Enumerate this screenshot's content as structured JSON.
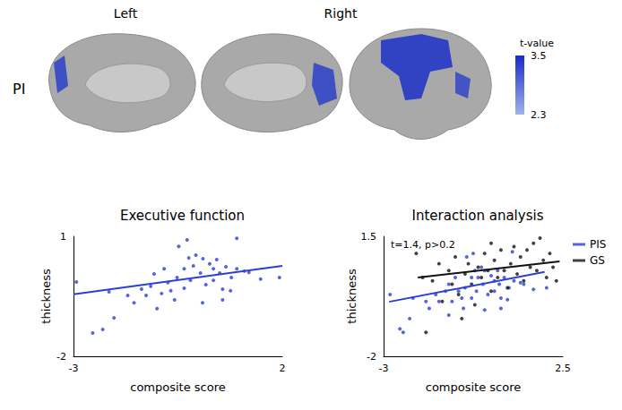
{
  "brain_map": {
    "row_label": "PI",
    "hemispheres": [
      "Left",
      "Right"
    ],
    "colorbar": {
      "title": "t-value",
      "range": [
        2.3,
        3.5
      ],
      "ticks": [
        2.3,
        3.5
      ]
    }
  },
  "chart_data": [
    {
      "type": "scatter",
      "title": "Executive function",
      "x_label": "composite score",
      "y_label": "thickness",
      "xlim": [
        -3,
        2
      ],
      "xticks": [
        -3,
        2
      ],
      "ylim": [
        -2,
        1
      ],
      "yticks": [
        -2,
        1
      ],
      "grid": false,
      "color": "#2b3fd6",
      "x": [
        -2.93,
        -2.3,
        -2.54,
        -2.03,
        -2.15,
        -1.7,
        -1.55,
        -1.37,
        -1.26,
        -1.15,
        -1.0,
        -1.07,
        -0.89,
        -0.83,
        -0.74,
        -0.67,
        -0.58,
        -0.52,
        -0.48,
        -0.35,
        -0.28,
        -0.35,
        -0.24,
        -0.2,
        -0.13,
        -0.07,
        0.04,
        0.1,
        0.17,
        0.26,
        0.35,
        0.43,
        0.35,
        0.5,
        0.57,
        0.65,
        0.78,
        0.91,
        1.09,
        0.91,
        1.2,
        1.48,
        0.76,
        1.93,
        0.57,
        0.09
      ],
      "values": [
        -0.14,
        -1.33,
        -1.42,
        -1.04,
        -0.39,
        -0.48,
        -0.66,
        -0.32,
        -0.48,
        -0.25,
        -0.81,
        0.06,
        -0.43,
        0.19,
        -0.16,
        -0.36,
        -0.59,
        -0.03,
        0.75,
        0.19,
        0.91,
        -0.3,
        0.46,
        -0.1,
        0.26,
        0.53,
        0.08,
        0.44,
        -0.21,
        0.31,
        0.19,
        0.42,
        -0.1,
        0.08,
        -0.32,
        0.24,
        -0.03,
        0.19,
        0.13,
        0.95,
        0.1,
        -0.07,
        -0.36,
        -0.03,
        -0.59,
        -0.66
      ],
      "fit": {
        "x": [
          -3,
          2
        ],
        "y": [
          -0.45,
          0.26
        ]
      }
    },
    {
      "type": "scatter",
      "title": "Interaction analysis",
      "x_label": "composite score",
      "y_label": "thickness",
      "xlim": [
        -3,
        2.5
      ],
      "xticks": [
        -3,
        2.5
      ],
      "ylim": [
        -2,
        1.5
      ],
      "yticks": [
        -2,
        1.5
      ],
      "grid": false,
      "legend": "upper right",
      "annotation": "t=1.4, p>0.2",
      "series": [
        {
          "name": "PIS",
          "color": "#2b3fd6",
          "x": [
            -2.8,
            -2.5,
            -2.4,
            -2.2,
            -2.1,
            -1.7,
            -1.6,
            -1.4,
            -1.3,
            -1.1,
            -1.0,
            -1.0,
            -0.9,
            -0.8,
            -0.7,
            -0.6,
            -0.55,
            -0.5,
            -0.45,
            -0.3,
            -0.25,
            -0.3,
            -0.2,
            -0.15,
            -0.1,
            0.0,
            0.05,
            0.1,
            0.2,
            0.3,
            0.4,
            0.5,
            0.4,
            0.55,
            0.6,
            0.7,
            0.85,
            1.0,
            1.2,
            0.95,
            1.3,
            1.6,
            0.8,
            2.0,
            0.6,
            0.1
          ],
          "values": [
            -0.2,
            -1.2,
            -1.3,
            -0.9,
            -0.3,
            -0.4,
            -0.6,
            -0.2,
            -0.4,
            -0.1,
            -0.8,
            0.1,
            -0.4,
            0.3,
            -0.1,
            -0.3,
            -0.6,
            0.0,
            0.9,
            0.3,
            1.0,
            -0.3,
            0.5,
            -0.1,
            0.3,
            0.6,
            0.1,
            0.5,
            -0.2,
            0.35,
            0.2,
            0.5,
            -0.1,
            0.1,
            -0.3,
            0.3,
            0.0,
            0.2,
            0.15,
            1.05,
            0.1,
            -0.05,
            -0.35,
            0.0,
            -0.6,
            -0.65
          ],
          "fit": {
            "x": [
              -2.83,
              1.94
            ],
            "y": [
              -0.41,
              0.46
            ]
          }
        },
        {
          "name": "GS",
          "color": "#111111",
          "x": [
            -2.0,
            -1.8,
            -1.7,
            -1.5,
            -1.3,
            -1.2,
            -1.0,
            -0.9,
            -0.8,
            -0.7,
            -0.5,
            -0.4,
            -0.3,
            -0.2,
            -0.1,
            0.0,
            0.1,
            0.2,
            0.3,
            0.4,
            0.5,
            0.6,
            0.7,
            0.8,
            0.9,
            1.0,
            1.1,
            1.2,
            1.3,
            1.4,
            1.5,
            1.6,
            1.7,
            1.8,
            1.9,
            2.0,
            2.1,
            2.2,
            2.3,
            -0.6,
            0.3
          ],
          "values": [
            1.0,
            0.3,
            -1.3,
            0.2,
            0.7,
            -0.4,
            0.5,
            0.1,
            0.9,
            -0.2,
            0.4,
            0.7,
            0.1,
            -0.5,
            0.6,
            0.3,
            1.0,
            0.5,
            -0.1,
            0.8,
            0.3,
            1.1,
            0.5,
            0.0,
            0.7,
            1.2,
            0.4,
            0.9,
            0.2,
            1.1,
            0.6,
            1.3,
            0.5,
            1.45,
            0.8,
            0.3,
            1.0,
            0.6,
            0.2,
            -0.9,
            1.3
          ],
          "fit": {
            "x": [
              -1.95,
              2.4
            ],
            "y": [
              0.3,
              0.77
            ]
          }
        }
      ]
    }
  ]
}
